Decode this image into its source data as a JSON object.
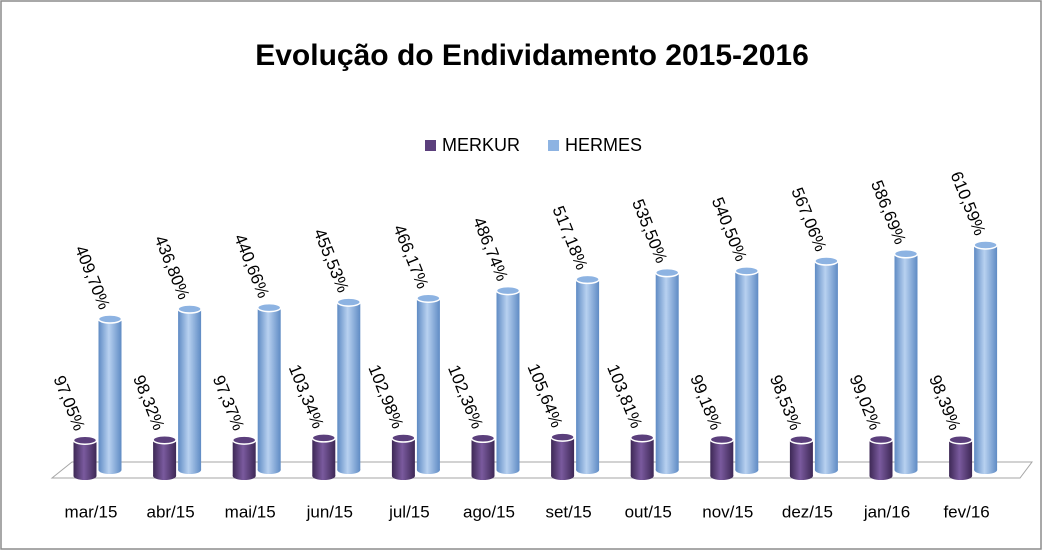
{
  "chart_data": {
    "type": "bar",
    "title": "Evolução do Endividamento 2015-2016",
    "categories": [
      "mar/15",
      "abr/15",
      "mai/15",
      "jun/15",
      "jul/15",
      "ago/15",
      "set/15",
      "out/15",
      "nov/15",
      "dez/15",
      "jan/16",
      "fev/16"
    ],
    "series": [
      {
        "name": "MERKUR",
        "color": "#5b3f7c",
        "values": [
          97.05,
          98.32,
          97.37,
          103.34,
          102.98,
          102.36,
          105.64,
          103.81,
          99.18,
          98.53,
          99.02,
          98.39
        ],
        "value_labels": [
          "97,05%",
          "98,32%",
          "97,37%",
          "103,34%",
          "102,98%",
          "102,36%",
          "105,64%",
          "103,81%",
          "99,18%",
          "98,53%",
          "99,02%",
          "98,39%"
        ]
      },
      {
        "name": "HERMES",
        "color": "#8db3e2",
        "values": [
          409.7,
          436.8,
          440.66,
          455.53,
          466.17,
          486.74,
          517.18,
          535.5,
          540.5,
          567.06,
          586.69,
          610.59
        ],
        "value_labels": [
          "409,70%",
          "436,80%",
          "440,66%",
          "455,53%",
          "466,17%",
          "486,74%",
          "517,18%",
          "535,50%",
          "540,50%",
          "567,06%",
          "586,69%",
          "610,59%"
        ]
      }
    ]
  }
}
